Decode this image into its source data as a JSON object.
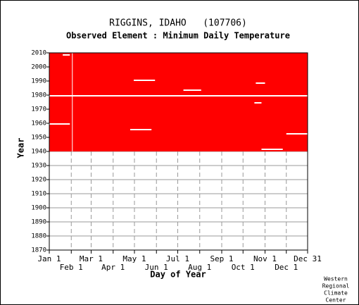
{
  "chart_data": {
    "type": "heatmap",
    "title": "RIGGINS, IDAHO   (107706)",
    "subtitle": "Observed Element : Minimum Daily Temperature",
    "xlabel": "Day of Year",
    "ylabel": "Year",
    "color": "#ff0000",
    "data_period": [
      1940,
      2010
    ],
    "missing": [
      {
        "years": [
          1979,
          1980
        ],
        "days": [
          1,
          365
        ]
      },
      {
        "years": [
          1959,
          1960
        ],
        "days": [
          1,
          30
        ]
      },
      {
        "years": [
          1990,
          1991
        ],
        "days": [
          120,
          150
        ]
      },
      {
        "years": [
          1988,
          1989
        ],
        "days": [
          292,
          305
        ]
      },
      {
        "years": [
          1941,
          1942
        ],
        "days": [
          300,
          330
        ]
      },
      {
        "years": [
          1955,
          1956
        ],
        "days": [
          115,
          145
        ]
      },
      {
        "years": [
          1952,
          1953
        ],
        "days": [
          335,
          365
        ]
      },
      {
        "years": [
          1974,
          1975
        ],
        "days": [
          290,
          300
        ]
      },
      {
        "years": [
          1983,
          1984
        ],
        "days": [
          190,
          215
        ]
      },
      {
        "years": [
          2008,
          2009
        ],
        "days": [
          20,
          30
        ]
      },
      {
        "years": [
          1940,
          2010
        ],
        "days": [
          33,
          34
        ]
      }
    ],
    "xlim": [
      1,
      365
    ],
    "ylim": [
      1870,
      2010
    ],
    "xticks": [
      {
        "value": 1,
        "label": "Jan 1"
      },
      {
        "value": 32,
        "label": "Feb 1"
      },
      {
        "value": 60,
        "label": "Mar 1"
      },
      {
        "value": 91,
        "label": "Apr 1"
      },
      {
        "value": 121,
        "label": "May 1"
      },
      {
        "value": 152,
        "label": "Jun 1"
      },
      {
        "value": 182,
        "label": "Jul 1"
      },
      {
        "value": 213,
        "label": "Aug 1"
      },
      {
        "value": 244,
        "label": "Sep 1"
      },
      {
        "value": 274,
        "label": "Oct 1"
      },
      {
        "value": 305,
        "label": "Nov 1"
      },
      {
        "value": 335,
        "label": "Dec 1"
      },
      {
        "value": 365,
        "label": "Dec 31"
      }
    ],
    "yticks": [
      1870,
      1880,
      1890,
      1900,
      1910,
      1920,
      1930,
      1940,
      1950,
      1960,
      1970,
      1980,
      1990,
      2000,
      2010
    ],
    "grid": true,
    "credit": [
      "Western",
      "Regional",
      "Climate",
      "Center"
    ]
  }
}
